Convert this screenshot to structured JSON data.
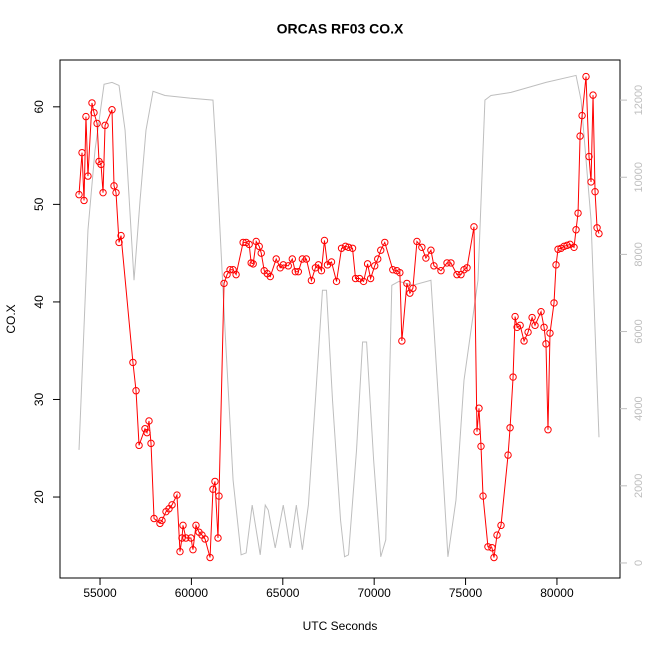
{
  "chart_data": {
    "type": "line",
    "title": "ORCAS RF03 CO.X",
    "xlabel": "UTC Seconds",
    "ylabel": "CO.X",
    "xlim": [
      52810,
      83450
    ],
    "ylim": [
      11.7,
      64.8
    ],
    "y2lim": [
      -390,
      13040
    ],
    "xticks": [
      55000,
      60000,
      65000,
      70000,
      75000,
      80000
    ],
    "yticks": [
      20,
      30,
      40,
      50,
      60
    ],
    "y2ticks": [
      0,
      2000,
      4000,
      6000,
      8000,
      10000,
      12000
    ],
    "series": [
      {
        "color": "#bebebe",
        "axis": "y2",
        "x": [
          53850,
          54340,
          54725,
          55220,
          55655,
          56040,
          56370,
          56860,
          57190,
          57515,
          57900,
          58555,
          59920,
          61180,
          61345,
          61840,
          62280,
          62720,
          62995,
          63325,
          63765,
          64040,
          64205,
          64585,
          65025,
          65410,
          65740,
          66070,
          66400,
          66785,
          67170,
          67390,
          67720,
          68160,
          68380,
          68595,
          69035,
          69365,
          69585,
          69970,
          70360,
          70635,
          70965,
          71350,
          72120,
          73105,
          73655,
          74035,
          74475,
          74915,
          75300,
          75680,
          76060,
          76390,
          77490,
          79400,
          81045,
          81320,
          81865,
          82300
        ],
        "values": [
          2930,
          8630,
          10700,
          12410,
          12460,
          12380,
          11220,
          7330,
          9400,
          11220,
          12230,
          12120,
          12050,
          12000,
          10700,
          6040,
          2150,
          210,
          260,
          1500,
          210,
          1500,
          1370,
          390,
          1500,
          390,
          1500,
          340,
          1500,
          4220,
          7070,
          7070,
          4220,
          1110,
          160,
          210,
          2930,
          5730,
          5730,
          2670,
          160,
          600,
          7200,
          7300,
          7200,
          7330,
          3190,
          160,
          1630,
          4740,
          6040,
          7330,
          12000,
          12120,
          12200,
          12460,
          12640,
          12000,
          8890,
          3260
        ]
      },
      {
        "color": "#ff0000",
        "marker": "circle",
        "x": [
          53850,
          54015,
          54125,
          54230,
          54340,
          54560,
          54670,
          54840,
          54945,
          55055,
          55165,
          55275,
          55655,
          55765,
          55875,
          56040,
          56150,
          56800,
          56970,
          57135,
          57460,
          57570,
          57680,
          57790,
          57955,
          58280,
          58390,
          58610,
          58775,
          58940,
          59210,
          59375,
          59485,
          59540,
          59700,
          59975,
          60085,
          60250,
          60415,
          60580,
          60745,
          61020,
          61180,
          61290,
          61455,
          61510,
          61785,
          61950,
          62115,
          62280,
          62445,
          62830,
          62995,
          63160,
          63270,
          63380,
          63545,
          63710,
          63820,
          63985,
          64150,
          64315,
          64640,
          64860,
          65025,
          65300,
          65520,
          65685,
          65850,
          66070,
          66290,
          66565,
          66785,
          66950,
          67115,
          67280,
          67445,
          67665,
          67940,
          68215,
          68430,
          68595,
          68815,
          68980,
          69200,
          69420,
          69640,
          69805,
          70030,
          70195,
          70360,
          70580,
          71020,
          71240,
          71405,
          71515,
          71790,
          71955,
          72120,
          72340,
          72610,
          72830,
          73105,
          73270,
          73655,
          73985,
          74200,
          74530,
          74750,
          74915,
          75080,
          75460,
          75625,
          75735,
          75845,
          75955,
          76225,
          76445,
          76555,
          76720,
          76940,
          77325,
          77435,
          77600,
          77710,
          77820,
          77985,
          78200,
          78420,
          78640,
          78800,
          79130,
          79295,
          79400,
          79510,
          79620,
          79840,
          79950,
          80060,
          80225,
          80390,
          80555,
          80720,
          80935,
          81045,
          81155,
          81265,
          81375,
          81590,
          81755,
          81865,
          81975,
          82085,
          82195,
          82300
        ],
        "values": [
          51.0,
          55.3,
          50.4,
          59.0,
          52.9,
          60.4,
          59.4,
          58.3,
          54.4,
          54.1,
          51.2,
          58.1,
          59.7,
          51.9,
          51.2,
          46.1,
          46.8,
          33.8,
          30.9,
          25.3,
          27.0,
          26.6,
          27.8,
          25.5,
          17.8,
          17.3,
          17.6,
          18.5,
          18.8,
          19.2,
          20.2,
          14.4,
          15.8,
          17.1,
          15.8,
          15.8,
          14.6,
          17.1,
          16.4,
          16.1,
          15.7,
          13.8,
          20.8,
          21.6,
          15.8,
          20.1,
          41.9,
          42.8,
          43.3,
          43.3,
          42.8,
          46.1,
          46.1,
          45.9,
          44.0,
          43.9,
          46.2,
          45.7,
          45.0,
          43.2,
          42.9,
          42.6,
          44.4,
          43.5,
          43.8,
          43.7,
          44.4,
          43.1,
          43.1,
          44.4,
          44.4,
          42.2,
          43.5,
          43.8,
          43.2,
          46.3,
          43.8,
          44.1,
          42.1,
          45.5,
          45.7,
          45.6,
          45.5,
          42.4,
          42.4,
          42.1,
          43.9,
          42.4,
          43.7,
          44.4,
          45.3,
          46.1,
          43.3,
          43.2,
          43.0,
          36.0,
          41.9,
          40.9,
          41.4,
          46.2,
          45.6,
          44.5,
          45.3,
          43.7,
          43.2,
          44.0,
          44.0,
          42.8,
          42.8,
          43.3,
          43.5,
          47.7,
          26.7,
          29.1,
          25.2,
          20.1,
          14.9,
          14.8,
          13.8,
          16.1,
          17.1,
          24.3,
          27.1,
          32.3,
          38.5,
          37.4,
          37.6,
          36.0,
          36.9,
          38.4,
          37.6,
          39.0,
          37.4,
          35.7,
          26.9,
          36.8,
          39.9,
          43.8,
          45.4,
          45.5,
          45.7,
          45.8,
          45.9,
          45.6,
          47.4,
          49.1,
          57.0,
          59.1,
          63.1,
          54.9,
          52.3,
          61.2,
          51.3,
          47.6,
          47.0
        ]
      }
    ]
  }
}
